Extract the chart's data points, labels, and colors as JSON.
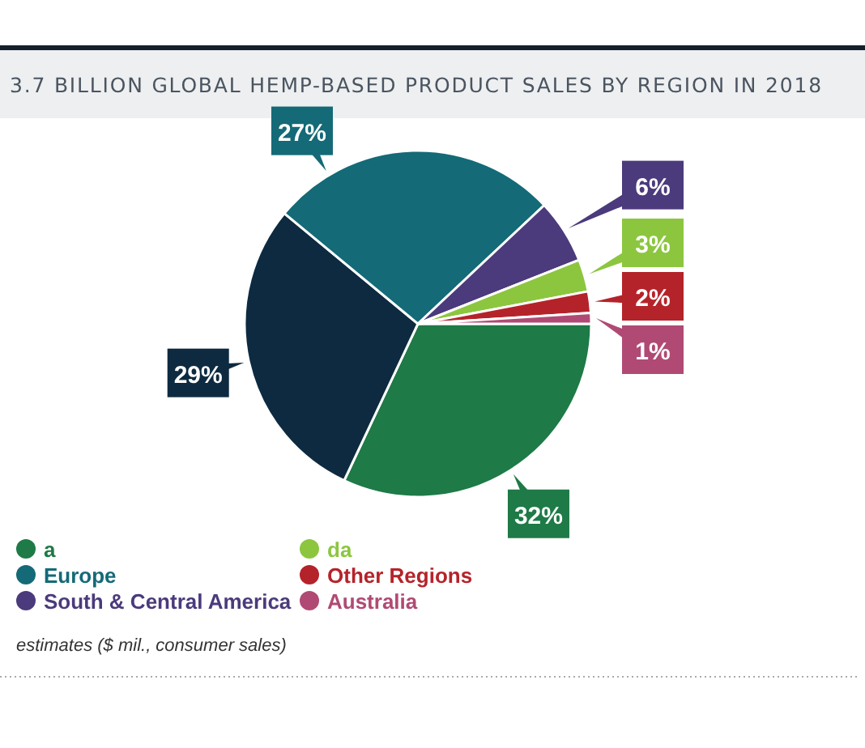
{
  "chart_data": {
    "type": "pie",
    "title": "3.7 BILLION GLOBAL HEMP-BASED PRODUCT SALES BY REGION IN 2018",
    "categories": [
      "a",
      null,
      "Europe",
      "South & Central America",
      "da",
      "Other Regions",
      "Australia"
    ],
    "values": [
      32,
      29,
      27,
      6,
      3,
      2,
      1
    ],
    "colors": [
      "#1e7a46",
      "#0d2a40",
      "#146a77",
      "#4b3a7c",
      "#8cc63f",
      "#b5232a",
      "#b04a74"
    ],
    "value_labels": [
      "32%",
      "29%",
      "27%",
      "6%",
      "3%",
      "2%",
      "1%"
    ],
    "legend": "bottom",
    "annotations": [
      "estimates ($ mil., consumer sales)"
    ]
  }
}
